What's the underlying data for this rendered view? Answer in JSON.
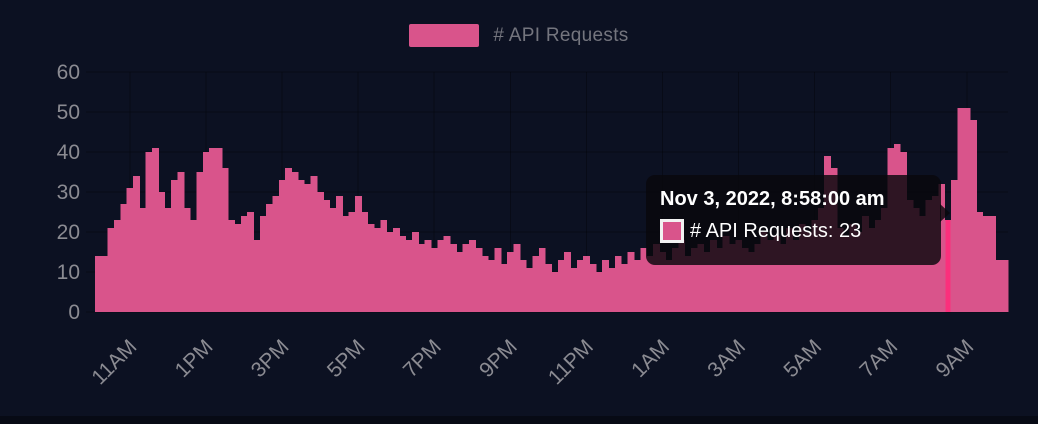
{
  "legend": {
    "label": "# API Requests",
    "swatch_color": "#d9548b"
  },
  "tooltip": {
    "title": "Nov 3, 2022, 8:58:00 am",
    "text": "# API Requests: 23",
    "swatch_color": "#d9548b"
  },
  "colors": {
    "background": "#0c1122",
    "bar": "#d9548b",
    "bar_highlight": "#fb2f7c",
    "axis_text": "#8b8b92",
    "legend_text": "#74757e",
    "grid": "rgba(0,0,0,0.32)",
    "tooltip_background": "rgba(9,7,12,0.82)",
    "tooltip_text": "#ffffff"
  },
  "chart_data": {
    "type": "bar",
    "ylim": [
      0,
      60
    ],
    "y_ticks": [
      0,
      10,
      20,
      30,
      40,
      50,
      60
    ],
    "x_tick_labels": [
      "11AM",
      "1PM",
      "3PM",
      "5PM",
      "7PM",
      "9PM",
      "11PM",
      "1AM",
      "3AM",
      "5AM",
      "7AM",
      "9AM"
    ],
    "x_tick_first_bar_index": 5,
    "x_tick_bar_step": 12,
    "grid": true,
    "legend_position": "top-center",
    "highlight": {
      "index": 134,
      "value": 23,
      "time_label": "Nov 3, 2022, 8:58:00 am"
    },
    "series": [
      {
        "name": "# API Requests",
        "values": [
          14,
          14,
          21,
          23,
          27,
          31,
          34,
          26,
          40,
          41,
          30,
          26,
          33,
          35,
          26,
          23,
          35,
          40,
          41,
          41,
          36,
          23,
          22,
          24,
          25,
          18,
          24,
          27,
          29,
          33,
          36,
          35,
          33,
          32,
          34,
          30,
          28,
          26,
          29,
          24,
          25,
          29,
          25,
          22,
          21,
          23,
          20,
          21,
          19,
          18,
          20,
          17,
          18,
          16,
          18,
          19,
          17,
          15,
          17,
          18,
          16,
          14,
          13,
          16,
          12,
          15,
          17,
          13,
          11,
          14,
          16,
          12,
          10,
          13,
          15,
          11,
          13,
          14,
          12,
          10,
          13,
          11,
          14,
          12,
          15,
          13,
          16,
          14,
          17,
          15,
          13,
          16,
          18,
          14,
          16,
          17,
          15,
          18,
          16,
          19,
          17,
          18,
          16,
          15,
          17,
          20,
          18,
          19,
          17,
          21,
          18,
          22,
          20,
          23,
          26,
          39,
          36,
          21,
          19,
          22,
          20,
          24,
          21,
          23,
          26,
          41,
          42,
          40,
          28,
          26,
          24,
          28,
          29,
          32,
          23,
          33,
          51,
          51,
          48,
          25,
          24,
          24,
          13,
          13
        ]
      }
    ]
  }
}
